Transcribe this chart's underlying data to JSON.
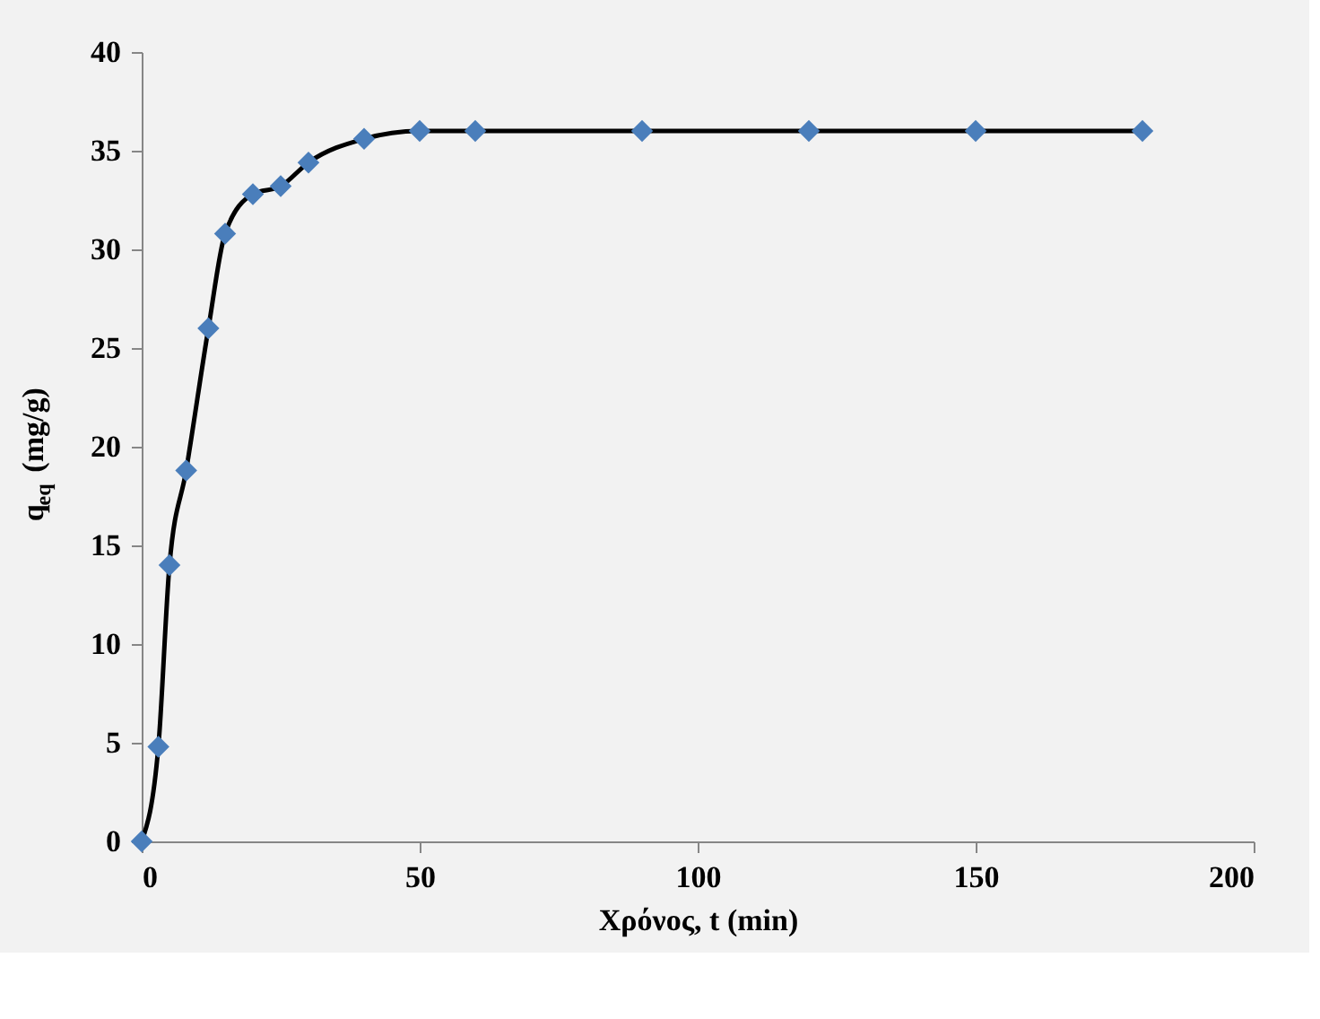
{
  "chart_data": {
    "type": "line",
    "xlabel": "Χρόνος,  t (min)",
    "ylabel": "q$_{eq}$ (mg/g)",
    "x": [
      0,
      3,
      5,
      8,
      12,
      15,
      20,
      25,
      30,
      40,
      50,
      60,
      90,
      120,
      150,
      180
    ],
    "series": [
      {
        "color": "#4a7ebb",
        "values": [
          0,
          4.8,
          14.0,
          18.8,
          26.0,
          30.8,
          32.8,
          33.2,
          34.4,
          35.6,
          36.0,
          36.0,
          36.0,
          36.0,
          36.0,
          36.0
        ]
      }
    ],
    "xlim": [
      0,
      200
    ],
    "xticks": [
      0,
      50,
      100,
      150,
      200
    ],
    "ylim": [
      0,
      40
    ],
    "yticks": [
      0,
      5,
      10,
      15,
      20,
      25,
      30,
      35,
      40
    ],
    "grid": false,
    "marker": "diamond",
    "line_style": "solid"
  }
}
